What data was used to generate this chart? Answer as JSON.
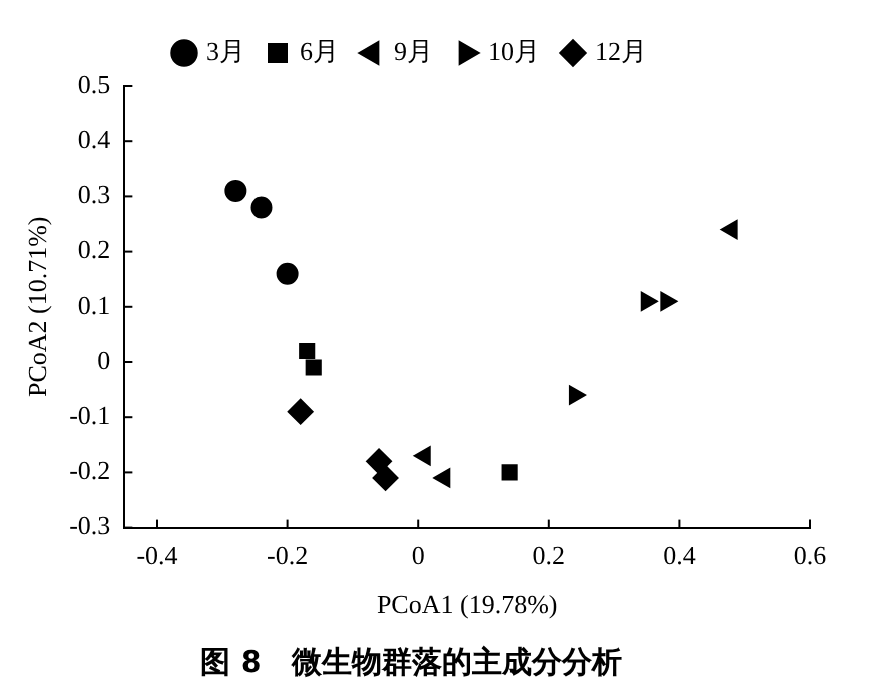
{
  "chart_data": {
    "type": "scatter",
    "title": "图 8　微生物群落的主成分分析",
    "xlabel": "PCoA1 (19.78%)",
    "ylabel": "PCoA2 (10.71%)",
    "xlim": [
      -0.45,
      0.6
    ],
    "xticks": [
      -0.4,
      -0.2,
      0,
      0.2,
      0.4,
      0.6
    ],
    "ylim": [
      -0.3,
      0.5
    ],
    "yticks": [
      -0.3,
      -0.2,
      -0.1,
      0,
      0.1,
      0.2,
      0.3,
      0.4,
      0.5
    ],
    "grid": false,
    "legend": "top",
    "series": [
      {
        "name": "3月",
        "color": "#000000",
        "marker": "circle",
        "x": [
          -0.28,
          -0.24,
          -0.2
        ],
        "values": [
          0.31,
          0.28,
          0.16
        ]
      },
      {
        "name": "6月",
        "color": "#000000",
        "marker": "square",
        "x": [
          -0.17,
          -0.16,
          0.14
        ],
        "values": [
          0.02,
          -0.01,
          -0.2
        ]
      },
      {
        "name": "9月",
        "color": "#000000",
        "marker": "triangle-left",
        "x": [
          0.48,
          0.01,
          0.04
        ],
        "values": [
          0.24,
          -0.17,
          -0.21
        ]
      },
      {
        "name": "10月",
        "color": "#000000",
        "marker": "triangle-right",
        "x": [
          0.35,
          0.38,
          0.24
        ],
        "values": [
          0.11,
          0.11,
          -0.06
        ]
      },
      {
        "name": "12月",
        "color": "#000000",
        "marker": "diamond",
        "x": [
          -0.18,
          -0.06,
          -0.05
        ],
        "values": [
          -0.09,
          -0.18,
          -0.21
        ]
      }
    ]
  }
}
